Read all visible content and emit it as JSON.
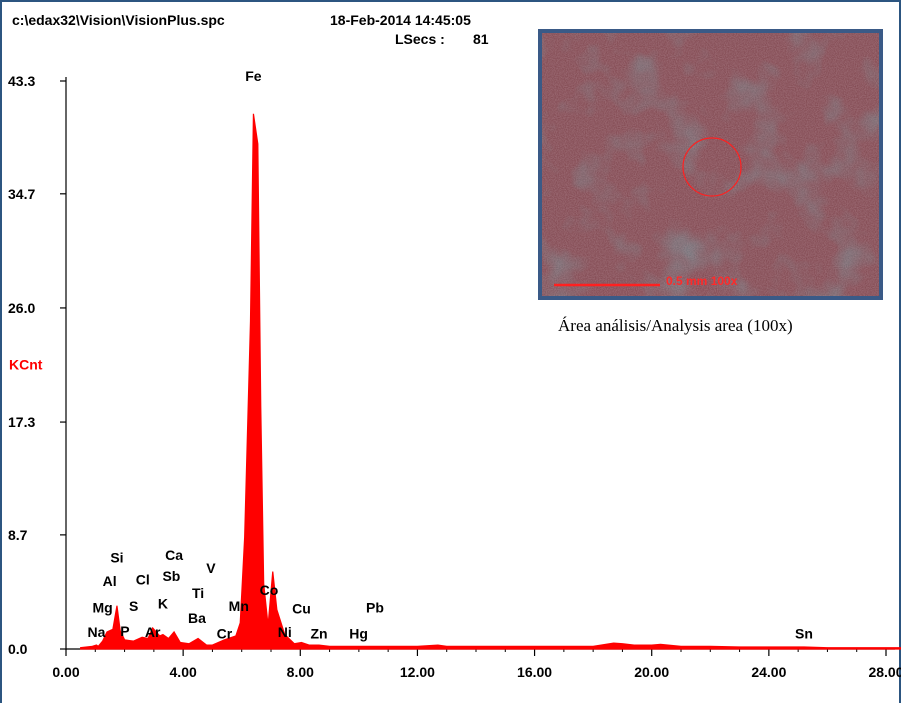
{
  "header": {
    "file_path": "c:\\edax32\\Vision\\VisionPlus.spc",
    "datetime": "18-Feb-2014 14:45:05",
    "lsecs_label": "LSecs :",
    "lsecs_value": "81"
  },
  "inset": {
    "scale_label": "0.5 mm  100x",
    "caption": "Área análisis/Analysis area (100x)"
  },
  "colors": {
    "spectrum": "#ff0000",
    "axis": "#000000",
    "frame": "#2c5580"
  },
  "chart_data": {
    "type": "line",
    "title": "",
    "xlabel": "",
    "ylabel": "KCnt",
    "xlim": [
      0,
      28.8
    ],
    "ylim": [
      0,
      43.3
    ],
    "x_ticks": [
      "0.00",
      "4.00",
      "8.00",
      "12.00",
      "16.00",
      "20.00",
      "24.00",
      "28.00"
    ],
    "y_ticks": [
      "0.0",
      "8.7",
      "17.3",
      "26.0",
      "34.7",
      "43.3"
    ],
    "series": [
      {
        "x": [
          0.5,
          0.9,
          1.04,
          1.1,
          1.25,
          1.4,
          1.6,
          1.74,
          1.85,
          2.0,
          2.3,
          2.6,
          2.8,
          2.96,
          3.2,
          3.31,
          3.5,
          3.69,
          3.9,
          4.2,
          4.51,
          4.8,
          5.0,
          5.41,
          5.8,
          5.95,
          6.1,
          6.3,
          6.4,
          6.55,
          6.65,
          6.75,
          6.9,
          7.06,
          7.2,
          7.47,
          7.8,
          8.04,
          8.3,
          8.64,
          9.0,
          9.99,
          10.55,
          11.0,
          12.0,
          12.7,
          13.0,
          14.0,
          15.0,
          16.0,
          17.0,
          18.0,
          18.7,
          19.0,
          19.4,
          20.0,
          20.3,
          21.0,
          22.0,
          23.0,
          24.0,
          25.2,
          26.0,
          27.0,
          28.0,
          28.8
        ],
        "y": [
          0.1,
          0.2,
          0.3,
          0.2,
          0.6,
          1.3,
          1.5,
          3.3,
          1.4,
          0.7,
          0.6,
          0.9,
          0.8,
          1.6,
          1.0,
          1.1,
          0.8,
          1.3,
          0.5,
          0.4,
          0.8,
          0.3,
          0.3,
          0.7,
          1.0,
          2.0,
          8.5,
          25.0,
          40.8,
          38.5,
          18.5,
          5.0,
          1.8,
          5.9,
          3.0,
          1.1,
          0.4,
          0.5,
          0.3,
          0.3,
          0.2,
          0.2,
          0.2,
          0.2,
          0.2,
          0.3,
          0.2,
          0.2,
          0.2,
          0.2,
          0.2,
          0.2,
          0.45,
          0.4,
          0.3,
          0.3,
          0.35,
          0.2,
          0.2,
          0.15,
          0.15,
          0.15,
          0.1,
          0.1,
          0.1,
          0.1
        ]
      }
    ],
    "annotations": [
      {
        "text": "Fe",
        "x": 6.4,
        "y": 43.3
      },
      {
        "text": "Si",
        "x": 1.74,
        "y": 6.6
      },
      {
        "text": "Al",
        "x": 1.49,
        "y": 4.8
      },
      {
        "text": "Cl",
        "x": 2.62,
        "y": 4.9
      },
      {
        "text": "Ca",
        "x": 3.69,
        "y": 6.8
      },
      {
        "text": "Sb",
        "x": 3.6,
        "y": 5.2
      },
      {
        "text": "V",
        "x": 4.95,
        "y": 5.8
      },
      {
        "text": "Ti",
        "x": 4.51,
        "y": 3.9
      },
      {
        "text": "K",
        "x": 3.31,
        "y": 3.1
      },
      {
        "text": "Mg",
        "x": 1.25,
        "y": 2.8
      },
      {
        "text": "S",
        "x": 2.31,
        "y": 2.9
      },
      {
        "text": "Mn",
        "x": 5.9,
        "y": 2.9
      },
      {
        "text": "Co",
        "x": 6.93,
        "y": 4.1
      },
      {
        "text": "Cu",
        "x": 8.04,
        "y": 2.7
      },
      {
        "text": "Pb",
        "x": 10.55,
        "y": 2.8
      },
      {
        "text": "Ba",
        "x": 4.47,
        "y": 2.0
      },
      {
        "text": "Na",
        "x": 1.04,
        "y": 0.9
      },
      {
        "text": "P",
        "x": 2.01,
        "y": 1.0
      },
      {
        "text": "Ar",
        "x": 2.96,
        "y": 0.9
      },
      {
        "text": "Cr",
        "x": 5.41,
        "y": 0.8
      },
      {
        "text": "Ni",
        "x": 7.47,
        "y": 0.9
      },
      {
        "text": "Zn",
        "x": 8.64,
        "y": 0.8
      },
      {
        "text": "Hg",
        "x": 9.99,
        "y": 0.8
      },
      {
        "text": "Sn",
        "x": 25.2,
        "y": 0.8
      }
    ]
  }
}
